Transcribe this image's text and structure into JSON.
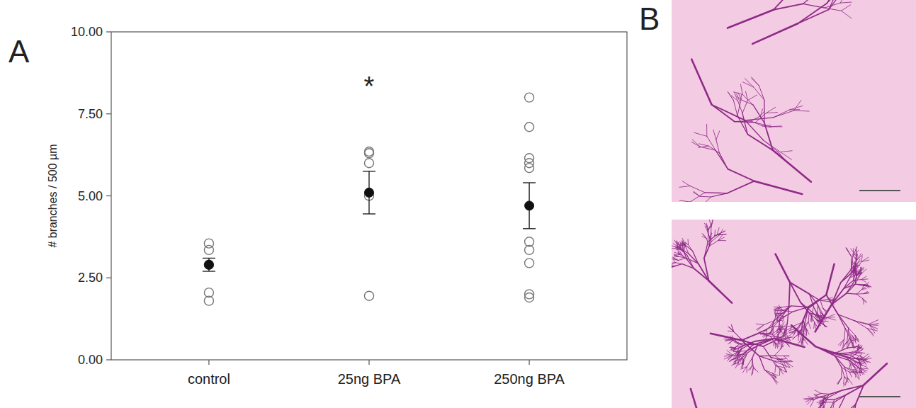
{
  "chart_data": {
    "type": "scatter",
    "panel_label": "A",
    "categories": [
      "control",
      "25ng BPA",
      "250ng BPA"
    ],
    "points": [
      [
        3.55,
        3.35,
        2.9,
        2.05,
        1.8
      ],
      [
        6.35,
        6.3,
        6.0,
        5.0,
        1.95
      ],
      [
        8.0,
        7.1,
        6.15,
        6.0,
        5.85,
        3.6,
        3.35,
        2.95,
        2.0,
        1.9
      ]
    ],
    "means": [
      2.9,
      5.1,
      4.7
    ],
    "errors": [
      0.2,
      0.65,
      0.7
    ],
    "annotations": [
      {
        "category": 1,
        "value": 8.45,
        "text": "*"
      }
    ],
    "y_label": "# branches / 500 µm",
    "ylim": [
      0,
      10
    ],
    "yticks": [
      {
        "value": 0,
        "label": "0.00"
      },
      {
        "value": 2.5,
        "label": "2.50"
      },
      {
        "value": 5,
        "label": "5.00"
      },
      {
        "value": 7.5,
        "label": "7.50"
      },
      {
        "value": 10,
        "label": "10.00"
      }
    ],
    "grid": false
  },
  "images": {
    "panel_label": "B"
  }
}
